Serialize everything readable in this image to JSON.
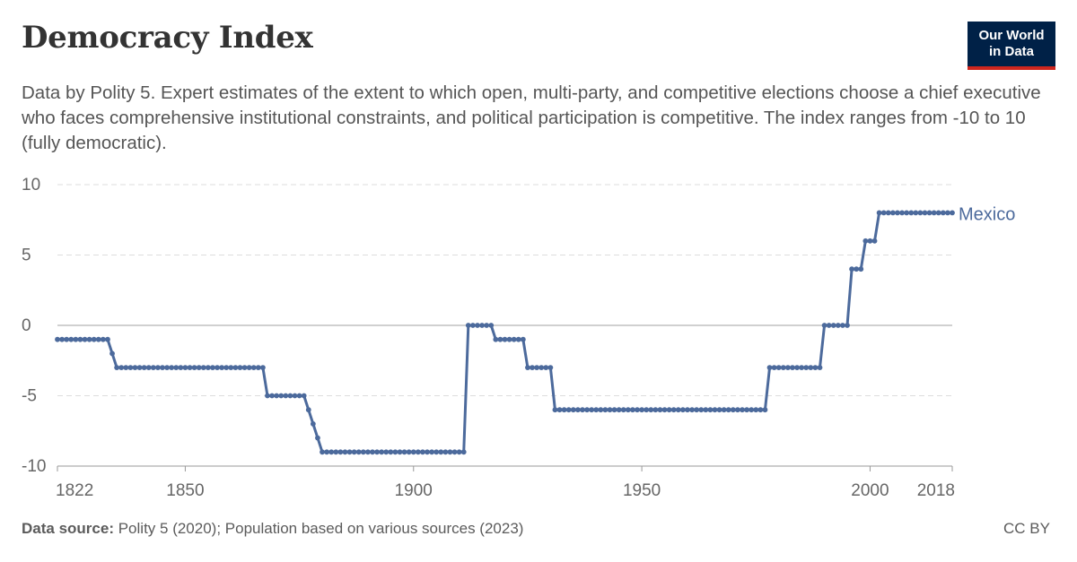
{
  "title": "Democracy Index",
  "subtitle": "Data by Polity 5. Expert estimates of the extent to which open, multi-party, and competitive elections choose a chief executive who faces comprehensive institutional constraints, and political participation is competitive. The index ranges from -10 to 10 (fully democratic).",
  "logo": {
    "line1": "Our World",
    "line2": "in Data"
  },
  "footer": {
    "source_label": "Data source:",
    "source_text": "Polity 5 (2020); Population based on various sources (2023)",
    "license": "CC BY"
  },
  "colors": {
    "series": "#4c6a9c",
    "grid": "#dddddd",
    "zero": "#a0a0a0",
    "axis_text": "#666666"
  },
  "chart_data": {
    "type": "line",
    "title": "Democracy Index",
    "xlabel": "",
    "ylabel": "",
    "xlim": [
      1822,
      2018
    ],
    "ylim": [
      -10,
      10
    ],
    "x_ticks": [
      1822,
      1850,
      1900,
      1950,
      2000,
      2018
    ],
    "y_ticks": [
      10,
      5,
      0,
      -5,
      -10
    ],
    "grid": "horizontal dashed",
    "series": [
      {
        "name": "Mexico",
        "color": "#4c6a9c",
        "points": [
          [
            1822,
            -1
          ],
          [
            1823,
            -1
          ],
          [
            1824,
            -1
          ],
          [
            1825,
            -1
          ],
          [
            1826,
            -1
          ],
          [
            1827,
            -1
          ],
          [
            1828,
            -1
          ],
          [
            1829,
            -1
          ],
          [
            1830,
            -1
          ],
          [
            1831,
            -1
          ],
          [
            1832,
            -1
          ],
          [
            1833,
            -1
          ],
          [
            1834,
            -2
          ],
          [
            1835,
            -3
          ],
          [
            1836,
            -3
          ],
          [
            1837,
            -3
          ],
          [
            1838,
            -3
          ],
          [
            1839,
            -3
          ],
          [
            1840,
            -3
          ],
          [
            1841,
            -3
          ],
          [
            1842,
            -3
          ],
          [
            1843,
            -3
          ],
          [
            1844,
            -3
          ],
          [
            1845,
            -3
          ],
          [
            1846,
            -3
          ],
          [
            1847,
            -3
          ],
          [
            1848,
            -3
          ],
          [
            1849,
            -3
          ],
          [
            1850,
            -3
          ],
          [
            1851,
            -3
          ],
          [
            1852,
            -3
          ],
          [
            1853,
            -3
          ],
          [
            1854,
            -3
          ],
          [
            1855,
            -3
          ],
          [
            1856,
            -3
          ],
          [
            1857,
            -3
          ],
          [
            1858,
            -3
          ],
          [
            1859,
            -3
          ],
          [
            1860,
            -3
          ],
          [
            1861,
            -3
          ],
          [
            1862,
            -3
          ],
          [
            1863,
            -3
          ],
          [
            1864,
            -3
          ],
          [
            1865,
            -3
          ],
          [
            1866,
            -3
          ],
          [
            1867,
            -3
          ],
          [
            1868,
            -5
          ],
          [
            1869,
            -5
          ],
          [
            1870,
            -5
          ],
          [
            1871,
            -5
          ],
          [
            1872,
            -5
          ],
          [
            1873,
            -5
          ],
          [
            1874,
            -5
          ],
          [
            1875,
            -5
          ],
          [
            1876,
            -5
          ],
          [
            1877,
            -6
          ],
          [
            1878,
            -7
          ],
          [
            1879,
            -8
          ],
          [
            1880,
            -9
          ],
          [
            1881,
            -9
          ],
          [
            1882,
            -9
          ],
          [
            1883,
            -9
          ],
          [
            1884,
            -9
          ],
          [
            1885,
            -9
          ],
          [
            1886,
            -9
          ],
          [
            1887,
            -9
          ],
          [
            1888,
            -9
          ],
          [
            1889,
            -9
          ],
          [
            1890,
            -9
          ],
          [
            1891,
            -9
          ],
          [
            1892,
            -9
          ],
          [
            1893,
            -9
          ],
          [
            1894,
            -9
          ],
          [
            1895,
            -9
          ],
          [
            1896,
            -9
          ],
          [
            1897,
            -9
          ],
          [
            1898,
            -9
          ],
          [
            1899,
            -9
          ],
          [
            1900,
            -9
          ],
          [
            1901,
            -9
          ],
          [
            1902,
            -9
          ],
          [
            1903,
            -9
          ],
          [
            1904,
            -9
          ],
          [
            1905,
            -9
          ],
          [
            1906,
            -9
          ],
          [
            1907,
            -9
          ],
          [
            1908,
            -9
          ],
          [
            1909,
            -9
          ],
          [
            1910,
            -9
          ],
          [
            1911,
            -9
          ],
          [
            1912,
            0
          ],
          [
            1913,
            0
          ],
          [
            1914,
            0
          ],
          [
            1915,
            0
          ],
          [
            1916,
            0
          ],
          [
            1917,
            0
          ],
          [
            1918,
            -1
          ],
          [
            1919,
            -1
          ],
          [
            1920,
            -1
          ],
          [
            1921,
            -1
          ],
          [
            1922,
            -1
          ],
          [
            1923,
            -1
          ],
          [
            1924,
            -1
          ],
          [
            1925,
            -3
          ],
          [
            1926,
            -3
          ],
          [
            1927,
            -3
          ],
          [
            1928,
            -3
          ],
          [
            1929,
            -3
          ],
          [
            1930,
            -3
          ],
          [
            1931,
            -6
          ],
          [
            1932,
            -6
          ],
          [
            1933,
            -6
          ],
          [
            1934,
            -6
          ],
          [
            1935,
            -6
          ],
          [
            1936,
            -6
          ],
          [
            1937,
            -6
          ],
          [
            1938,
            -6
          ],
          [
            1939,
            -6
          ],
          [
            1940,
            -6
          ],
          [
            1941,
            -6
          ],
          [
            1942,
            -6
          ],
          [
            1943,
            -6
          ],
          [
            1944,
            -6
          ],
          [
            1945,
            -6
          ],
          [
            1946,
            -6
          ],
          [
            1947,
            -6
          ],
          [
            1948,
            -6
          ],
          [
            1949,
            -6
          ],
          [
            1950,
            -6
          ],
          [
            1951,
            -6
          ],
          [
            1952,
            -6
          ],
          [
            1953,
            -6
          ],
          [
            1954,
            -6
          ],
          [
            1955,
            -6
          ],
          [
            1956,
            -6
          ],
          [
            1957,
            -6
          ],
          [
            1958,
            -6
          ],
          [
            1959,
            -6
          ],
          [
            1960,
            -6
          ],
          [
            1961,
            -6
          ],
          [
            1962,
            -6
          ],
          [
            1963,
            -6
          ],
          [
            1964,
            -6
          ],
          [
            1965,
            -6
          ],
          [
            1966,
            -6
          ],
          [
            1967,
            -6
          ],
          [
            1968,
            -6
          ],
          [
            1969,
            -6
          ],
          [
            1970,
            -6
          ],
          [
            1971,
            -6
          ],
          [
            1972,
            -6
          ],
          [
            1973,
            -6
          ],
          [
            1974,
            -6
          ],
          [
            1975,
            -6
          ],
          [
            1976,
            -6
          ],
          [
            1977,
            -6
          ],
          [
            1978,
            -3
          ],
          [
            1979,
            -3
          ],
          [
            1980,
            -3
          ],
          [
            1981,
            -3
          ],
          [
            1982,
            -3
          ],
          [
            1983,
            -3
          ],
          [
            1984,
            -3
          ],
          [
            1985,
            -3
          ],
          [
            1986,
            -3
          ],
          [
            1987,
            -3
          ],
          [
            1988,
            -3
          ],
          [
            1989,
            -3
          ],
          [
            1990,
            0
          ],
          [
            1991,
            0
          ],
          [
            1992,
            0
          ],
          [
            1993,
            0
          ],
          [
            1994,
            0
          ],
          [
            1995,
            0
          ],
          [
            1996,
            4
          ],
          [
            1997,
            4
          ],
          [
            1998,
            4
          ],
          [
            1999,
            6
          ],
          [
            2000,
            6
          ],
          [
            2001,
            6
          ],
          [
            2002,
            8
          ],
          [
            2003,
            8
          ],
          [
            2004,
            8
          ],
          [
            2005,
            8
          ],
          [
            2006,
            8
          ],
          [
            2007,
            8
          ],
          [
            2008,
            8
          ],
          [
            2009,
            8
          ],
          [
            2010,
            8
          ],
          [
            2011,
            8
          ],
          [
            2012,
            8
          ],
          [
            2013,
            8
          ],
          [
            2014,
            8
          ],
          [
            2015,
            8
          ],
          [
            2016,
            8
          ],
          [
            2017,
            8
          ],
          [
            2018,
            8
          ]
        ]
      }
    ]
  }
}
